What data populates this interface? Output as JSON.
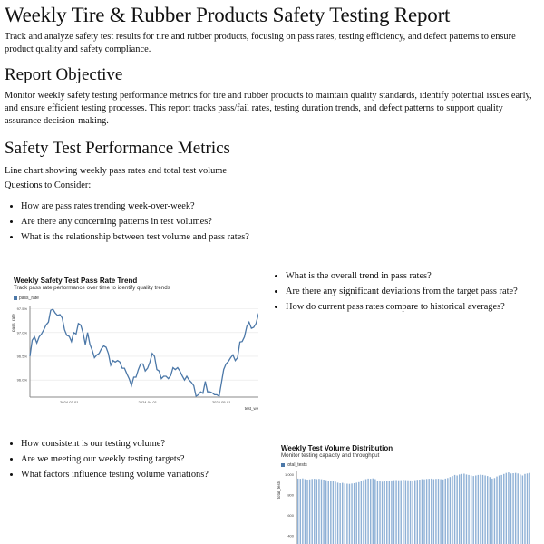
{
  "title": "Weekly Tire & Rubber Products Safety Testing Report",
  "intro": "Track and analyze safety test results for tire and rubber products, focusing on pass rates, testing efficiency, and defect patterns to ensure product quality and safety compliance.",
  "objective": {
    "heading": "Report Objective",
    "text": "Monitor weekly safety testing performance metrics for tire and rubber products to maintain quality standards, identify potential issues early, and ensure efficient testing processes. This report tracks pass/fail rates, testing duration trends, and defect patterns to support quality assurance decision-making."
  },
  "metrics": {
    "heading": "Safety Test Performance Metrics",
    "description": "Line chart showing weekly pass rates and total test volume",
    "questions_label": "Questions to Consider:",
    "questions": [
      "How are pass rates trending week-over-week?",
      "Are there any concerning patterns in test volumes?",
      "What is the relationship between test volume and pass rates?"
    ],
    "pass_rate_questions": [
      "What is the overall trend in pass rates?",
      "Are there any significant deviations from the target pass rate?",
      "How do current pass rates compare to historical averages?"
    ],
    "volume_questions": [
      "How consistent is our testing volume?",
      "Are we meeting our weekly testing targets?",
      "What factors influence testing volume variations?"
    ]
  },
  "colors": {
    "series": "#4c78a8",
    "grid": "#e6e6e6",
    "axis": "#888888"
  },
  "chart_data": [
    {
      "type": "line",
      "title": "Weekly Safety Test Pass Rate Trend",
      "subtitle": "Track pass rate performance over time to identify quality trends",
      "legend": "pass_rate",
      "legend_placement": "top-left",
      "xlabel": "test_week",
      "ylabel": "pass_rate",
      "ylim": [
        95.64,
        97.55
      ],
      "yticks": [
        {
          "v": 96.0,
          "label": "96.0%"
        },
        {
          "v": 96.5,
          "label": "96.5%"
        },
        {
          "v": 97.0,
          "label": "97.0%"
        },
        {
          "v": 97.5,
          "label": "97.5%"
        }
      ],
      "xticks": [
        {
          "i": 17,
          "label": "2024-03-01"
        },
        {
          "i": 51,
          "label": "2024-04-01"
        },
        {
          "i": 83,
          "label": "2024-05-01"
        }
      ],
      "values": [
        96.5,
        96.84,
        96.91,
        96.78,
        96.91,
        96.97,
        97.06,
        97.16,
        97.22,
        97.47,
        97.49,
        97.41,
        97.36,
        97.38,
        97.31,
        97.06,
        96.94,
        96.92,
        96.81,
        97.0,
        96.97,
        97.19,
        97.16,
        97.0,
        96.75,
        97.0,
        96.75,
        96.63,
        96.47,
        96.53,
        96.56,
        96.66,
        96.72,
        96.69,
        96.56,
        96.31,
        96.41,
        96.38,
        96.41,
        96.38,
        96.25,
        96.25,
        96.13,
        96.03,
        95.88,
        96.06,
        96.06,
        96.22,
        96.34,
        96.34,
        96.19,
        96.25,
        96.38,
        96.56,
        96.5,
        96.22,
        96.19,
        96.03,
        96.08,
        96.08,
        96.03,
        96.09,
        96.26,
        96.22,
        96.26,
        96.19,
        96.09,
        96.0,
        96.08,
        96.0,
        95.95,
        95.88,
        95.66,
        95.69,
        95.75,
        95.72,
        95.97,
        95.75,
        95.75,
        95.73,
        95.69,
        95.69,
        95.66,
        95.94,
        96.22,
        96.34,
        96.39,
        96.47,
        96.53,
        96.41,
        96.47,
        96.8,
        96.81,
        96.91,
        97.13,
        97.22,
        97.09,
        97.11,
        97.19,
        97.38,
        97.5,
        97.53
      ]
    },
    {
      "type": "bar",
      "title": "Weekly Test Volume Distribution",
      "subtitle": "Monitor testing capacity and throughput",
      "legend": "total_tests",
      "legend_placement": "top-left",
      "ylabel": "total_tests",
      "yticks": [
        {
          "v": 400,
          "label": "400"
        },
        {
          "v": 600,
          "label": "600"
        },
        {
          "v": 800,
          "label": "800"
        },
        {
          "v": 1000,
          "label": "1,000"
        }
      ],
      "ylim": [
        320,
        1030
      ],
      "values": [
        960,
        958,
        962,
        955,
        950,
        952,
        956,
        958,
        955,
        957,
        954,
        950,
        945,
        940,
        935,
        938,
        930,
        920,
        915,
        918,
        912,
        910,
        908,
        912,
        915,
        920,
        925,
        935,
        945,
        955,
        960,
        958,
        962,
        955,
        940,
        932,
        930,
        935,
        938,
        940,
        942,
        945,
        946,
        944,
        945,
        948,
        946,
        944,
        942,
        940,
        945,
        948,
        950,
        955,
        953,
        956,
        958,
        960,
        955,
        957,
        958,
        955,
        952,
        960,
        965,
        975,
        985,
        995,
        990,
        1000,
        1005,
        1008,
        1000,
        995,
        990,
        985,
        990,
        995,
        998,
        995,
        990,
        985,
        975,
        960,
        965,
        980,
        990,
        995,
        1005,
        1015,
        1020,
        1010,
        1012,
        1015,
        1010,
        1000,
        990,
        1005,
        1010,
        1015
      ]
    }
  ]
}
